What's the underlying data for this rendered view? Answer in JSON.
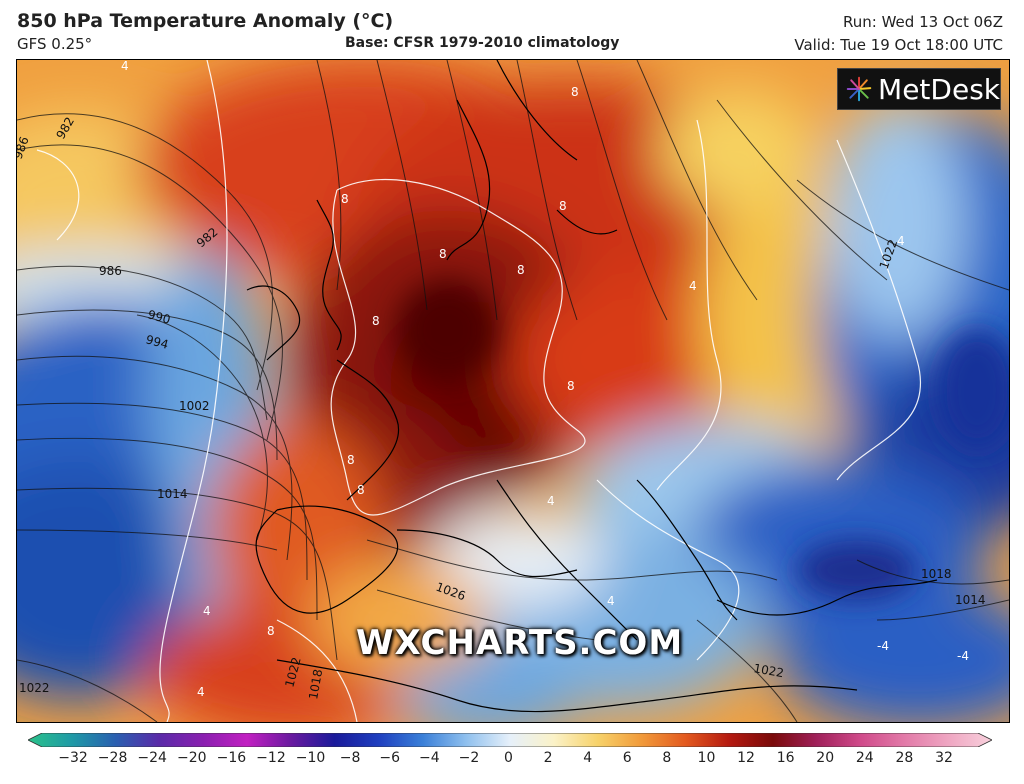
{
  "header": {
    "title": "850 hPa Temperature Anomaly (°C)",
    "model": "GFS 0.25°",
    "base": "Base: CFSR 1979-2010 climatology",
    "run": "Run: Wed 13 Oct 06Z",
    "valid": "Valid: Tue 19 Oct 18:00 UTC"
  },
  "logo": {
    "text": "MetDesk"
  },
  "watermark": "WXCHARTS.COM",
  "map": {
    "isobar_labels": [
      "986",
      "982",
      "982",
      "986",
      "990",
      "994",
      "1002",
      "1014",
      "1026",
      "1022",
      "1022",
      "1018",
      "1018",
      "1014",
      "1022",
      "1022"
    ],
    "anomaly_labels": [
      "8",
      "8",
      "8",
      "8",
      "8",
      "8",
      "8",
      "8",
      "8",
      "8",
      "4",
      "4",
      "4",
      "4",
      "4",
      "4",
      "4",
      "-4",
      "-4"
    ]
  },
  "colorbar": {
    "ticks": [
      "−32",
      "−28",
      "−24",
      "−20",
      "−16",
      "−12",
      "−10",
      "−8",
      "−6",
      "−4",
      "−2",
      "0",
      "2",
      "4",
      "6",
      "8",
      "10",
      "12",
      "16",
      "20",
      "24",
      "28",
      "32"
    ],
    "colors": [
      "#2bc28a",
      "#1f9aa6",
      "#2a5fb0",
      "#5a2aa8",
      "#8a1fb0",
      "#c21fc2",
      "#6a1aa0",
      "#1a1a9a",
      "#1f3fbf",
      "#3a7fd8",
      "#8fc0ee",
      "#e6f0fa",
      "#fbf2c8",
      "#f7d26a",
      "#f19a3a",
      "#e35a1f",
      "#b51a10",
      "#7a0a0a",
      "#a0205a",
      "#d04a8a",
      "#e27aa8",
      "#efa6c2",
      "#f8d0dc"
    ]
  }
}
